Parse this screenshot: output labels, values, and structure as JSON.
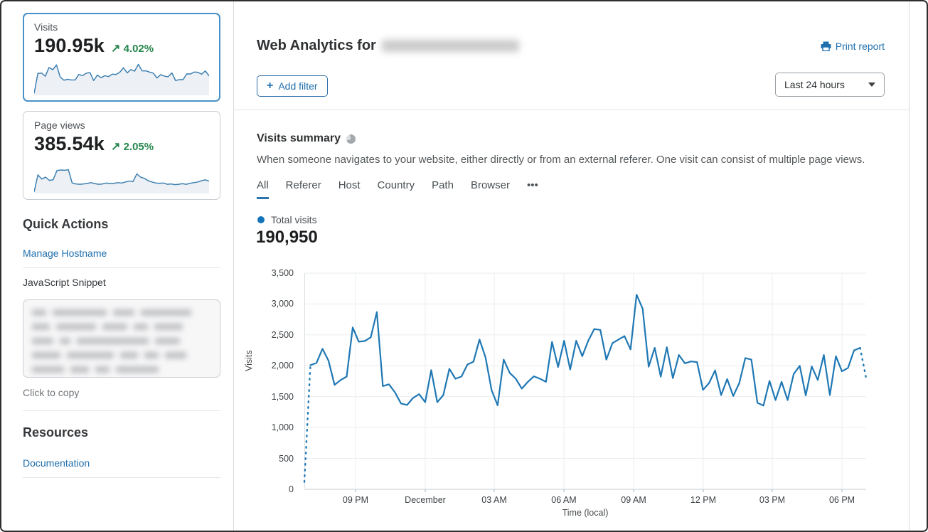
{
  "colors": {
    "link_blue": "#1f6fad",
    "chart_blue": "#1f78b4",
    "positive_green": "#27874e",
    "selected_card_border": "#4791c8",
    "legend_dot": "#1374ba"
  },
  "sidebar": {
    "stat_cards": [
      {
        "label": "Visits",
        "value": "190.95k",
        "change_arrow": "↗",
        "change": "4.02%",
        "trend": "up",
        "selected": true
      },
      {
        "label": "Page views",
        "value": "385.54k",
        "change_arrow": "↗",
        "change": "2.05%",
        "trend": "up",
        "selected": false
      }
    ],
    "quick_actions": {
      "title": "Quick Actions",
      "manage_hostname_label": "Manage Hostname",
      "snippet_label": "JavaScript Snippet",
      "copy_hint": "Click to copy"
    },
    "resources": {
      "title": "Resources",
      "documentation_label": "Documentation"
    }
  },
  "header": {
    "title": "Web Analytics for",
    "print_label": "Print report",
    "add_filter_label": "Add filter",
    "add_filter_plus": "+",
    "time_range": "Last 24 hours"
  },
  "summary": {
    "title": "Visits summary",
    "description": "When someone navigates to your website, either directly or from an external referer. One visit can consist of multiple page views.",
    "tabs": [
      "All",
      "Referer",
      "Host",
      "Country",
      "Path",
      "Browser",
      "•••"
    ],
    "active_tab": "All",
    "legend_label": "Total visits",
    "total": "190,950"
  },
  "chart_data": [
    {
      "type": "line",
      "name": "Total visits",
      "title": "Visits summary — Total visits (last 24 hours)",
      "xlabel": "Time (local)",
      "ylabel": "Visits",
      "x_tick_labels": [
        "09 PM",
        "December",
        "03 AM",
        "06 AM",
        "09 AM",
        "12 PM",
        "03 PM",
        "06 PM"
      ],
      "ytick_labels": [
        "3,500",
        "3,000",
        "2,500",
        "2,000",
        "1,500",
        "1,000",
        "500",
        "0"
      ],
      "yticks": [
        0,
        500,
        1000,
        1500,
        2000,
        2500,
        3000,
        3500
      ],
      "ylim": [
        0,
        3500
      ],
      "grid": true,
      "line_color": "#1f78b4",
      "dashed_start": true,
      "dashed_end": true,
      "values": [
        120,
        2010,
        2045,
        2275,
        2080,
        1690,
        1770,
        1825,
        2620,
        2390,
        2400,
        2460,
        2870,
        1670,
        1700,
        1570,
        1390,
        1365,
        1480,
        1540,
        1410,
        1930,
        1410,
        1525,
        1950,
        1790,
        1825,
        2020,
        2065,
        2425,
        2135,
        1605,
        1360,
        2100,
        1885,
        1790,
        1630,
        1740,
        1830,
        1790,
        1740,
        2385,
        1980,
        2405,
        1940,
        2405,
        2155,
        2405,
        2595,
        2580,
        2100,
        2365,
        2425,
        2480,
        2265,
        3150,
        2925,
        1985,
        2290,
        1825,
        2300,
        1800,
        2175,
        2040,
        2070,
        2060,
        1610,
        1720,
        1925,
        1525,
        1785,
        1510,
        1720,
        2125,
        2100,
        1400,
        1355,
        1755,
        1445,
        1740,
        1445,
        1865,
        2000,
        1520,
        1990,
        1770,
        2175,
        1525,
        2155,
        1910,
        1965,
        2250,
        2290,
        1800
      ]
    },
    {
      "type": "area",
      "name": "Visits sparkline",
      "ylim": [
        0,
        3300
      ],
      "values": [
        120,
        2045,
        2080,
        1770,
        2620,
        2400,
        2870,
        1700,
        1390,
        1480,
        1410,
        1410,
        1950,
        1825,
        2065,
        2135,
        1360,
        1885,
        1630,
        1830,
        1740,
        1980,
        1940,
        2155,
        2595,
        2100,
        2425,
        2265,
        2925,
        2290,
        2300,
        2175,
        2070,
        1610,
        1925,
        1785,
        1720,
        2100,
        1355,
        1445,
        1445,
        2000,
        1990,
        2175,
        2155,
        1965,
        2290,
        1800
      ]
    },
    {
      "type": "area",
      "name": "Page views sparkline",
      "ylim": [
        0,
        105
      ],
      "values": [
        3,
        55,
        42,
        48,
        38,
        40,
        68,
        70,
        69,
        71,
        30,
        27,
        26,
        27,
        29,
        31,
        28,
        26,
        27,
        30,
        28,
        29,
        31,
        30,
        33,
        36,
        34,
        58,
        48,
        44,
        37,
        33,
        30,
        29,
        30,
        26,
        27,
        25,
        26,
        28,
        26,
        29,
        31,
        33,
        37,
        40,
        36
      ]
    }
  ]
}
